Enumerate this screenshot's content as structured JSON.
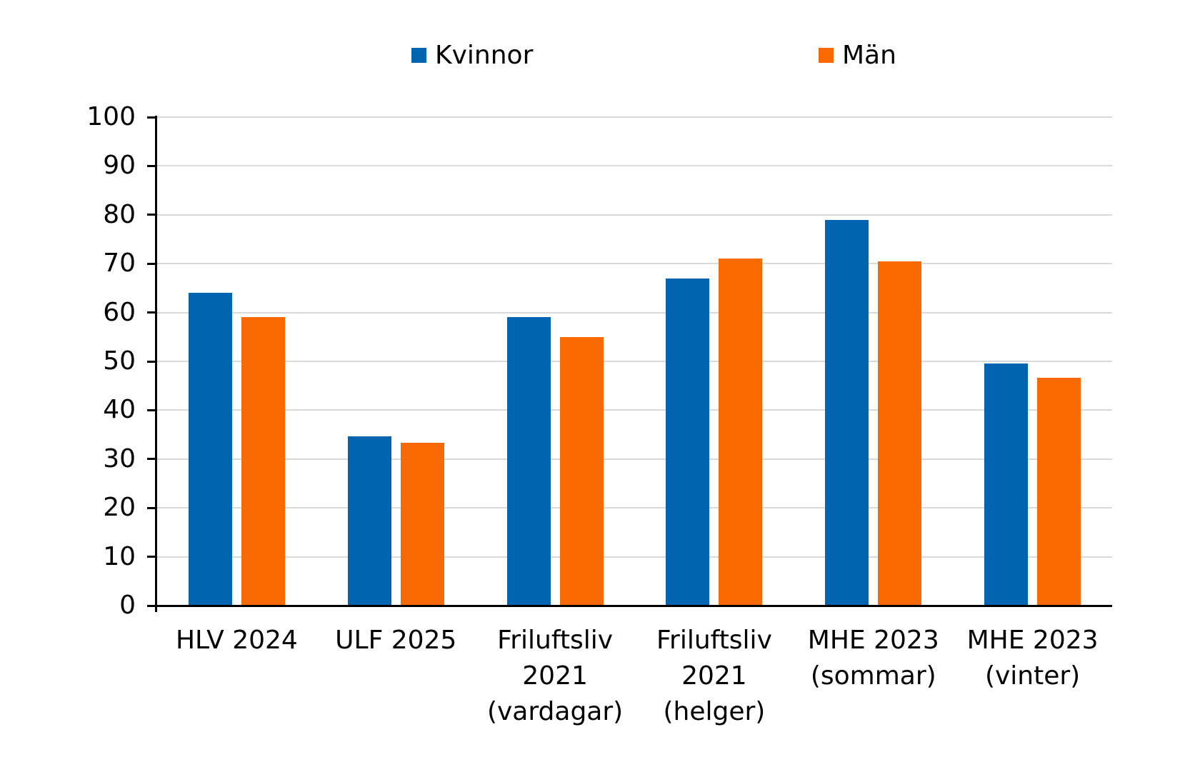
{
  "chart_data": {
    "type": "bar",
    "title": "",
    "xlabel": "",
    "ylabel": "",
    "categories": [
      [
        "HLV 2024"
      ],
      [
        "ULF 2025"
      ],
      [
        "Friluftsliv",
        "2021",
        "(vardagar)"
      ],
      [
        "Friluftsliv",
        "2021",
        "(helger)"
      ],
      [
        "MHE 2023",
        "(sommar)"
      ],
      [
        "MHE 2023",
        "(vinter)"
      ]
    ],
    "series": [
      {
        "name": "Kvinnor",
        "color": "#0064B0",
        "values": [
          64,
          34.7,
          59,
          67,
          79,
          49.5
        ]
      },
      {
        "name": "Män",
        "color": "#F96900",
        "values": [
          59,
          33.4,
          55,
          71,
          70.5,
          46.7
        ]
      }
    ],
    "ylim": [
      0,
      100
    ],
    "yticks": [
      0,
      10,
      20,
      30,
      40,
      50,
      60,
      70,
      80,
      90,
      100
    ],
    "grid": "horizontal",
    "legend_position": "top"
  },
  "colors": {
    "axis": "#000000",
    "gridline": "#D9D9D9",
    "background": "#FFFFFF",
    "text": "#000000"
  }
}
